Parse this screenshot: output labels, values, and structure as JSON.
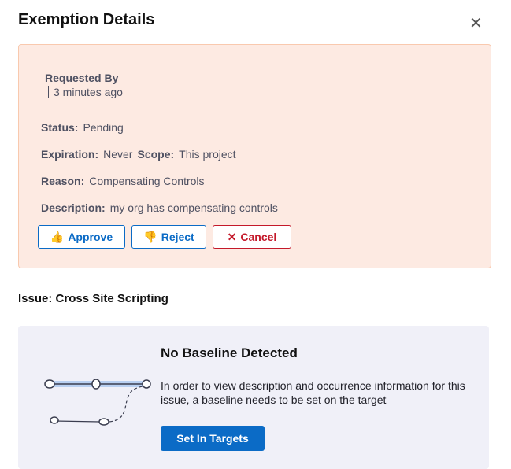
{
  "header": {
    "title": "Exemption Details",
    "close_icon": "close-icon"
  },
  "exemption": {
    "requested_by_label": "Requested By",
    "time_ago": "3 minutes ago",
    "status_label": "Status:",
    "status": "Pending",
    "expiration_label": "Expiration:",
    "expiration": "Never",
    "scope_label": "Scope:",
    "scope": "This project",
    "reason_label": "Reason:",
    "reason": "Compensating Controls",
    "description_label": "Description:",
    "description": "my org has compensating controls",
    "approve": "Approve",
    "reject": "Reject",
    "cancel": "Cancel",
    "colors": {
      "background": "#fdeae2",
      "border": "#f9c9ae",
      "primary": "#0b6bc6",
      "danger": "#c4192a"
    }
  },
  "issue": {
    "label": "Issue: Cross Site Scripting"
  },
  "baseline": {
    "title": "No Baseline Detected",
    "description": "In order to view description and occurrence information for this issue, a baseline needs to be set on the target",
    "button": "Set In Targets"
  }
}
